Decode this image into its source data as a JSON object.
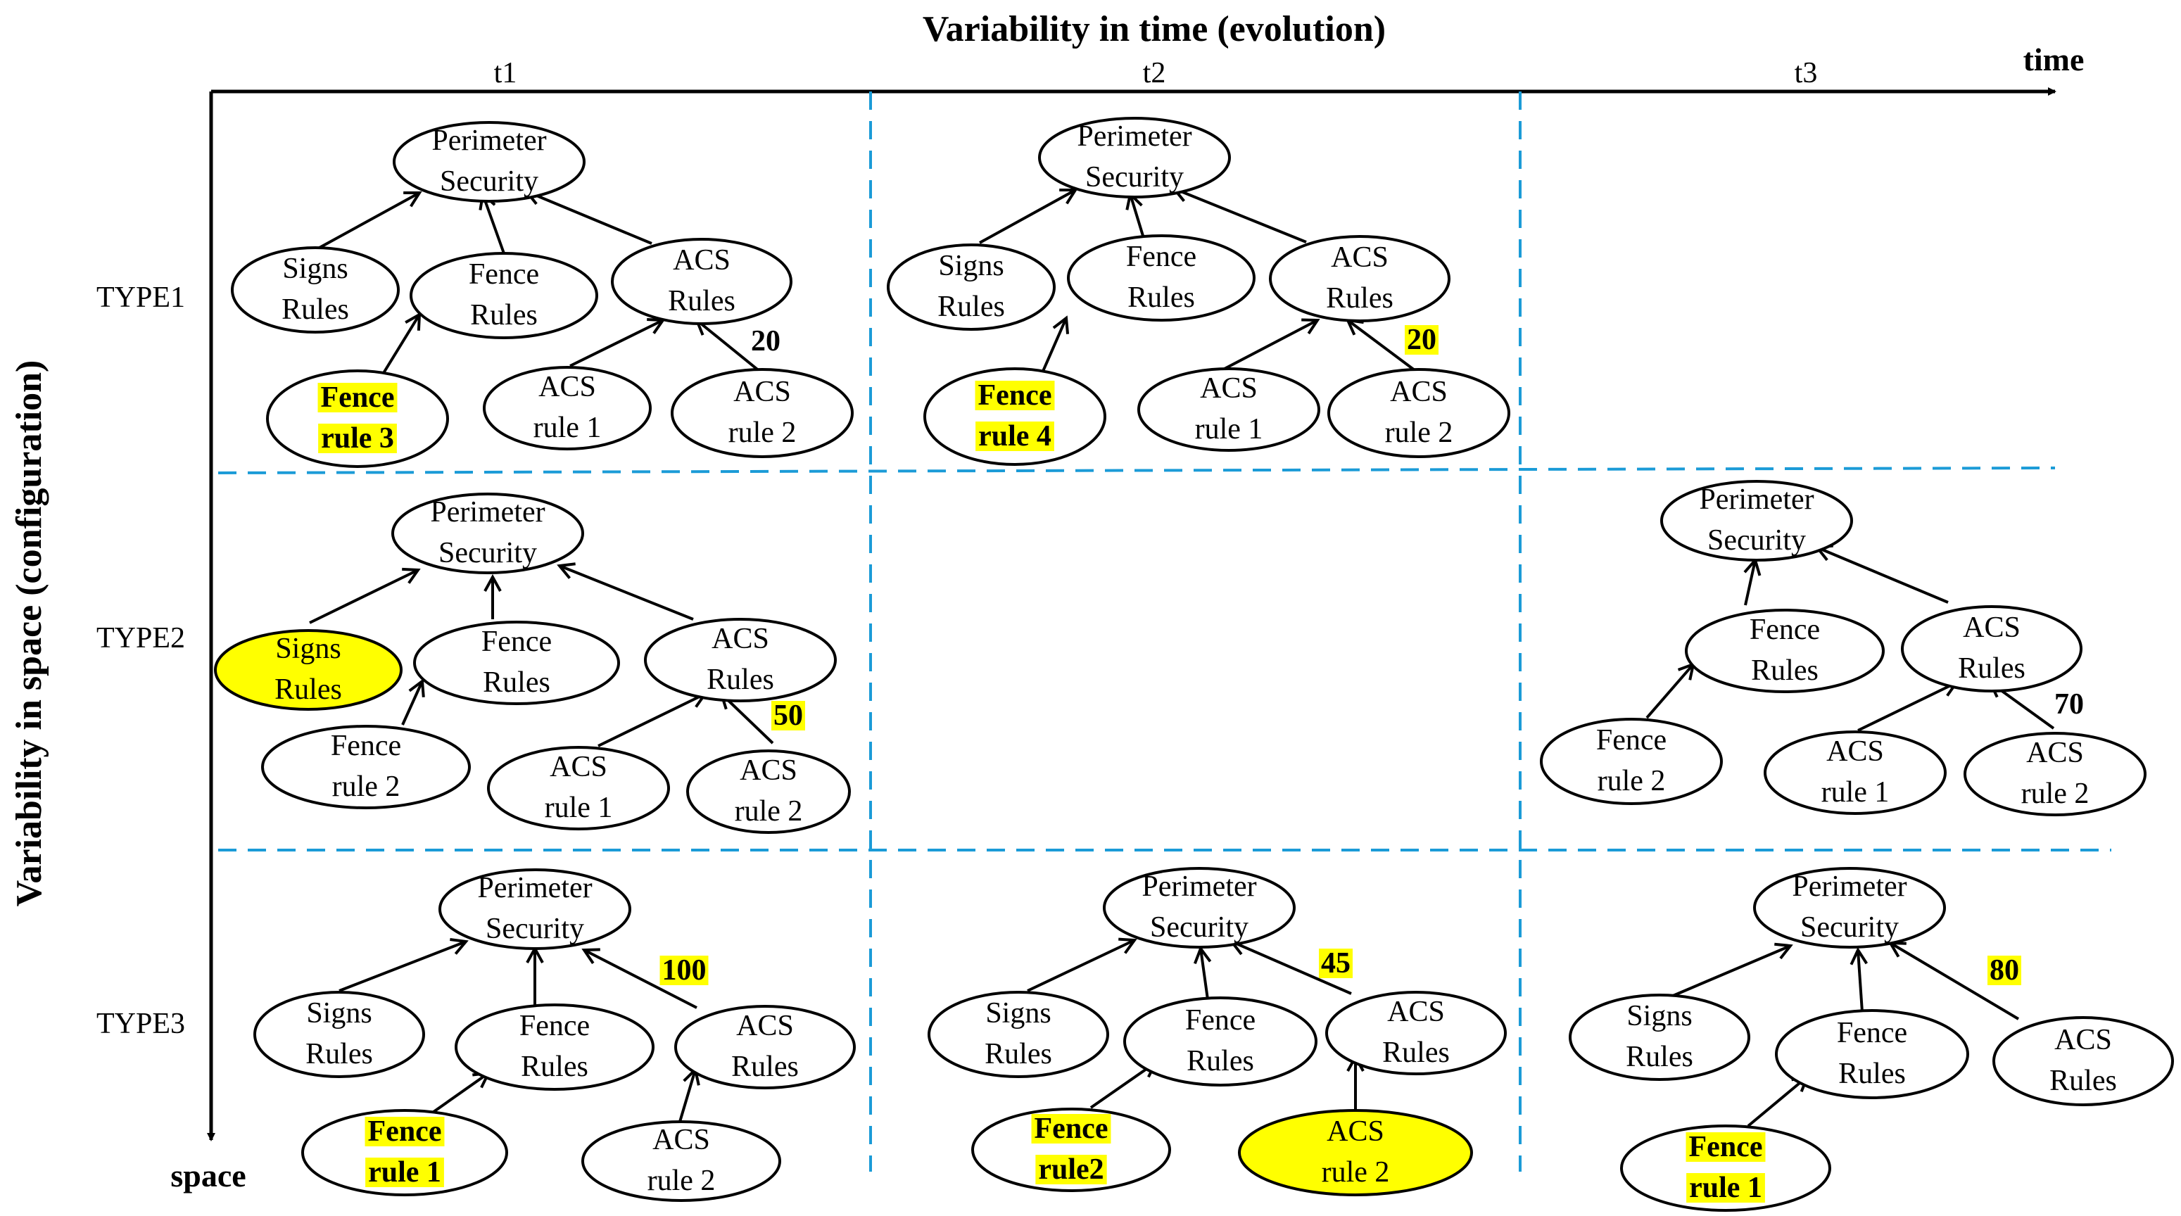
{
  "title": "Variability in time (evolution)",
  "y_title": "Variability in space (configuration)",
  "time_axis_label": "time",
  "space_axis_label": "space",
  "columns": [
    "t1",
    "t2",
    "t3"
  ],
  "rows": [
    "TYPE1",
    "TYPE2",
    "TYPE3"
  ],
  "highlight_color": "#ffff00",
  "divider_color": "#1b9bd7",
  "diagrams": [
    {
      "id": "type1-t1",
      "nodes": [
        {
          "id": "ps",
          "lines": [
            "Perimeter",
            "Security"
          ]
        },
        {
          "id": "signs",
          "lines": [
            "Signs",
            "Rules"
          ]
        },
        {
          "id": "fence",
          "lines": [
            "Fence",
            "Rules"
          ]
        },
        {
          "id": "acs",
          "lines": [
            "ACS",
            "Rules"
          ]
        },
        {
          "id": "fr",
          "lines": [
            "Fence",
            "rule 3"
          ],
          "text_highlight": true
        },
        {
          "id": "ar1",
          "lines": [
            "ACS",
            "rule 1"
          ]
        },
        {
          "id": "ar2",
          "lines": [
            "ACS",
            "rule 2"
          ]
        }
      ],
      "weight": {
        "value": "20",
        "highlight": false
      }
    },
    {
      "id": "type1-t2",
      "nodes": [
        {
          "id": "ps",
          "lines": [
            "Perimeter",
            "Security"
          ]
        },
        {
          "id": "signs",
          "lines": [
            "Signs",
            "Rules"
          ]
        },
        {
          "id": "fence",
          "lines": [
            "Fence",
            "Rules"
          ]
        },
        {
          "id": "acs",
          "lines": [
            "ACS",
            "Rules"
          ]
        },
        {
          "id": "fr",
          "lines": [
            "Fence",
            "rule 4"
          ],
          "text_highlight": true
        },
        {
          "id": "ar1",
          "lines": [
            "ACS",
            "rule 1"
          ]
        },
        {
          "id": "ar2",
          "lines": [
            "ACS",
            "rule 2"
          ]
        }
      ],
      "weight": {
        "value": "20",
        "highlight": true
      }
    },
    {
      "id": "type2-t1",
      "nodes": [
        {
          "id": "ps",
          "lines": [
            "Perimeter",
            "Security"
          ]
        },
        {
          "id": "signs",
          "lines": [
            "Signs",
            "Rules"
          ],
          "fill_highlight": true
        },
        {
          "id": "fence",
          "lines": [
            "Fence",
            "Rules"
          ]
        },
        {
          "id": "acs",
          "lines": [
            "ACS",
            "Rules"
          ]
        },
        {
          "id": "fr",
          "lines": [
            "Fence",
            "rule 2"
          ]
        },
        {
          "id": "ar1",
          "lines": [
            "ACS",
            "rule 1"
          ]
        },
        {
          "id": "ar2",
          "lines": [
            "ACS",
            "rule 2"
          ]
        }
      ],
      "weight": {
        "value": "50",
        "highlight": true
      }
    },
    {
      "id": "type2-t3",
      "nodes": [
        {
          "id": "ps",
          "lines": [
            "Perimeter",
            "Security"
          ]
        },
        {
          "id": "fence",
          "lines": [
            "Fence",
            "Rules"
          ]
        },
        {
          "id": "acs",
          "lines": [
            "ACS",
            "Rules"
          ]
        },
        {
          "id": "fr",
          "lines": [
            "Fence",
            "rule 2"
          ]
        },
        {
          "id": "ar1",
          "lines": [
            "ACS",
            "rule 1"
          ]
        },
        {
          "id": "ar2",
          "lines": [
            "ACS",
            "rule 2"
          ]
        }
      ],
      "weight": {
        "value": "70",
        "highlight": false
      }
    },
    {
      "id": "type3-t1",
      "nodes": [
        {
          "id": "ps",
          "lines": [
            "Perimeter",
            "Security"
          ]
        },
        {
          "id": "signs",
          "lines": [
            "Signs",
            "Rules"
          ]
        },
        {
          "id": "fence",
          "lines": [
            "Fence",
            "Rules"
          ]
        },
        {
          "id": "acs",
          "lines": [
            "ACS",
            "Rules"
          ]
        },
        {
          "id": "fr",
          "lines": [
            "Fence",
            "rule 1"
          ],
          "text_highlight": true
        },
        {
          "id": "ar2",
          "lines": [
            "ACS",
            "rule 2"
          ]
        }
      ],
      "weight": {
        "value": "100",
        "highlight": true
      }
    },
    {
      "id": "type3-t2",
      "nodes": [
        {
          "id": "ps",
          "lines": [
            "Perimeter",
            "Security"
          ]
        },
        {
          "id": "signs",
          "lines": [
            "Signs",
            "Rules"
          ]
        },
        {
          "id": "fence",
          "lines": [
            "Fence",
            "Rules"
          ]
        },
        {
          "id": "acs",
          "lines": [
            "ACS",
            "Rules"
          ]
        },
        {
          "id": "fr",
          "lines": [
            "Fence",
            "rule2"
          ],
          "text_highlight": true
        },
        {
          "id": "ar2",
          "lines": [
            "ACS",
            "rule 2"
          ],
          "fill_highlight": true
        }
      ],
      "weight": {
        "value": "45",
        "highlight": true
      }
    },
    {
      "id": "type3-t3",
      "nodes": [
        {
          "id": "ps",
          "lines": [
            "Perimeter",
            "Security"
          ]
        },
        {
          "id": "signs",
          "lines": [
            "Signs",
            "Rules"
          ]
        },
        {
          "id": "fence",
          "lines": [
            "Fence",
            "Rules"
          ]
        },
        {
          "id": "acs",
          "lines": [
            "ACS",
            "Rules"
          ]
        },
        {
          "id": "fr",
          "lines": [
            "Fence",
            "rule 1"
          ],
          "text_highlight": true
        }
      ],
      "weight": {
        "value": "80",
        "highlight": true
      }
    }
  ]
}
